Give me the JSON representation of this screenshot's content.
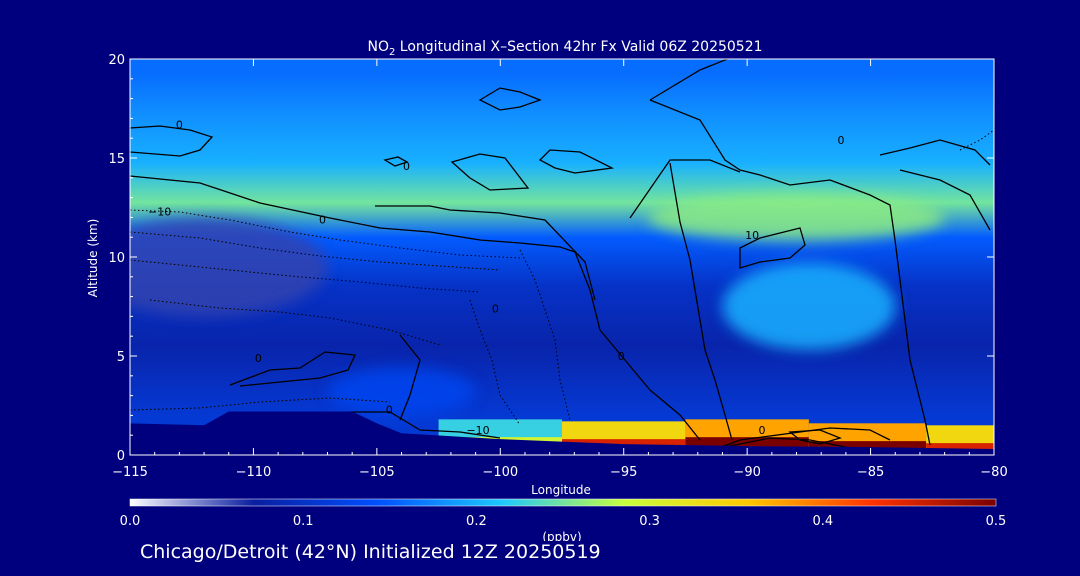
{
  "chart_data": {
    "type": "heatmap",
    "title_prefix": "NO",
    "title_sub": "2",
    "title_rest": " Longitudinal X–Section 42hr  Fx Valid 06Z 20250521",
    "xlabel": "Longitude",
    "ylabel": "Altitude (km)",
    "xlim": [
      -115,
      -80
    ],
    "ylim": [
      0,
      20
    ],
    "xticks": [
      -115,
      -110,
      -105,
      -100,
      -95,
      -90,
      -85,
      -80
    ],
    "xtick_labels": [
      "−115",
      "−110",
      "−105",
      "−100",
      "−95",
      "−90",
      "−85",
      "−80"
    ],
    "yticks": [
      0,
      5,
      10,
      15,
      20
    ],
    "ytick_labels": [
      "0",
      "5",
      "10",
      "15",
      "20"
    ],
    "colorbar": {
      "label": "(ppbv)",
      "range": [
        0.0,
        0.5
      ],
      "ticks": [
        0.0,
        0.1,
        0.2,
        0.3,
        0.4,
        0.5
      ],
      "tick_labels": [
        "0.0",
        "0.1",
        "0.2",
        "0.3",
        "0.4",
        "0.5"
      ],
      "colors": [
        "#ffffff",
        "#0a1ea0",
        "#0050ff",
        "#1ec8ff",
        "#c8ff3c",
        "#ffc800",
        "#ff3200",
        "#7a0000"
      ]
    },
    "terrain": {
      "x": [
        -115,
        -112,
        -111,
        -106,
        -105,
        -104,
        -100,
        -95,
        -90,
        -85,
        -80
      ],
      "y": [
        1.6,
        1.5,
        2.2,
        2.2,
        1.6,
        1.1,
        0.8,
        0.55,
        0.45,
        0.4,
        0.3
      ]
    },
    "background_layers": [
      {
        "altitude": [
          0,
          4
        ],
        "value": 0.11
      },
      {
        "altitude": [
          4,
          7
        ],
        "value": 0.08
      },
      {
        "altitude": [
          7,
          10
        ],
        "value": 0.1
      },
      {
        "altitude": [
          10,
          12
        ],
        "value": 0.15
      },
      {
        "altitude": [
          12,
          13.5
        ],
        "value": 0.25
      },
      {
        "altitude": [
          13.5,
          16
        ],
        "value": 0.2
      },
      {
        "altitude": [
          16,
          18.5
        ],
        "value": 0.18
      },
      {
        "altitude": [
          18.5,
          20
        ],
        "value": 0.16
      }
    ],
    "features": [
      {
        "lon": -87.5,
        "alt": 7.5,
        "value": 0.2,
        "rx": 3.5,
        "ry": 2.2
      },
      {
        "lon": -104,
        "alt": 3.2,
        "value": 0.13,
        "rx": 3,
        "ry": 1.2
      },
      {
        "lon": -88,
        "alt": 12,
        "value": 0.26,
        "rx": 6,
        "ry": 1.2
      },
      {
        "lon": -112,
        "alt": 9.5,
        "value": 0.06,
        "rx": 5,
        "ry": 2.5
      }
    ],
    "surface_band": [
      {
        "lon": -100,
        "alt": 0.9,
        "value": 0.3
      },
      {
        "lon": -95,
        "alt": 0.8,
        "value": 0.45
      },
      {
        "lon": -90,
        "alt": 0.9,
        "value": 0.5
      },
      {
        "lon": -85,
        "alt": 0.7,
        "value": 0.5
      },
      {
        "lon": -80.5,
        "alt": 0.6,
        "value": 0.45
      }
    ],
    "contour_labels": [
      {
        "text": "0",
        "lon": -113,
        "alt": 16.5
      },
      {
        "text": "0",
        "lon": -103.8,
        "alt": 14.4
      },
      {
        "text": "−10",
        "lon": -113.8,
        "alt": 12.1
      },
      {
        "text": "0",
        "lon": -107.2,
        "alt": 11.7
      },
      {
        "text": "0",
        "lon": -86.2,
        "alt": 15.7
      },
      {
        "text": "10",
        "lon": -89.8,
        "alt": 10.9
      },
      {
        "text": "0",
        "lon": -100.2,
        "alt": 7.2
      },
      {
        "text": "0",
        "lon": -109.8,
        "alt": 4.7
      },
      {
        "text": "0",
        "lon": -95.1,
        "alt": 4.8
      },
      {
        "text": "0",
        "lon": -104.5,
        "alt": 2.1
      },
      {
        "text": "−10",
        "lon": -100.9,
        "alt": 1.05
      },
      {
        "text": "0",
        "lon": -89.4,
        "alt": 1.05
      }
    ]
  },
  "footer": "Chicago/Detroit (42°N) Initialized 12Z 20250519"
}
